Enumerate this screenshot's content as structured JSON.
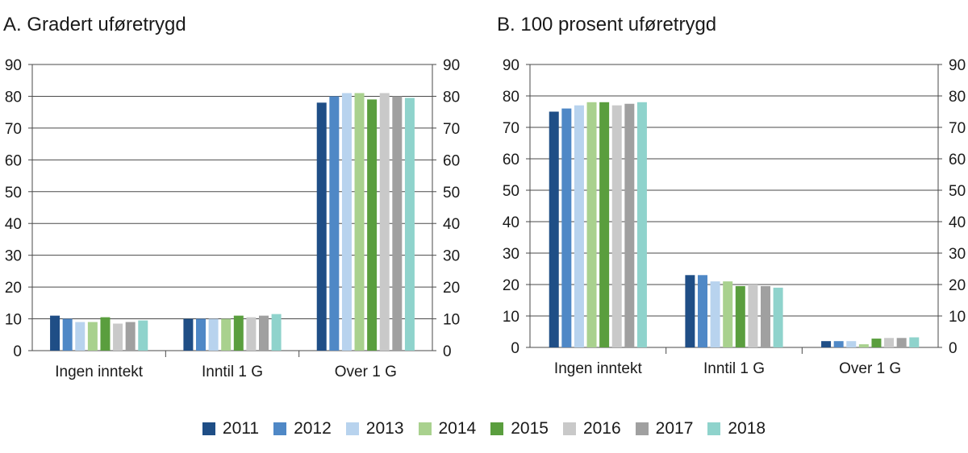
{
  "chart_data": [
    {
      "type": "bar",
      "title": "A. Gradert uføretrygd",
      "categories": [
        "Ingen inntekt",
        "Inntil 1 G",
        "Over 1 G"
      ],
      "ylim": [
        0,
        90
      ],
      "yticks": [
        "0",
        "10",
        "20",
        "30",
        "40",
        "50",
        "60",
        "70",
        "80",
        "90"
      ],
      "series": [
        {
          "name": "2011",
          "values": [
            11,
            10,
            78
          ]
        },
        {
          "name": "2012",
          "values": [
            10,
            10,
            80
          ]
        },
        {
          "name": "2013",
          "values": [
            9,
            10,
            81
          ]
        },
        {
          "name": "2014",
          "values": [
            9,
            10,
            81
          ]
        },
        {
          "name": "2015",
          "values": [
            10.5,
            11,
            79
          ]
        },
        {
          "name": "2016",
          "values": [
            8.5,
            10.5,
            81
          ]
        },
        {
          "name": "2017",
          "values": [
            9,
            11,
            80
          ]
        },
        {
          "name": "2018",
          "values": [
            9.5,
            11.5,
            79.5
          ]
        }
      ]
    },
    {
      "type": "bar",
      "title": "B. 100 prosent uføretrygd",
      "categories": [
        "Ingen inntekt",
        "Inntil 1 G",
        "Over 1 G"
      ],
      "ylim": [
        0,
        90
      ],
      "yticks": [
        "0",
        "10",
        "20",
        "30",
        "40",
        "50",
        "60",
        "70",
        "80",
        "90"
      ],
      "series": [
        {
          "name": "2011",
          "values": [
            75,
            23,
            2
          ]
        },
        {
          "name": "2012",
          "values": [
            76,
            23,
            2
          ]
        },
        {
          "name": "2013",
          "values": [
            77,
            21,
            2
          ]
        },
        {
          "name": "2014",
          "values": [
            78,
            21,
            1
          ]
        },
        {
          "name": "2015",
          "values": [
            78,
            19.5,
            2.8
          ]
        },
        {
          "name": "2016",
          "values": [
            77,
            20,
            3
          ]
        },
        {
          "name": "2017",
          "values": [
            77.5,
            19.5,
            3
          ]
        },
        {
          "name": "2018",
          "values": [
            78,
            19,
            3.2
          ]
        }
      ]
    }
  ],
  "legend": {
    "items": [
      {
        "label": "2011",
        "color": "#1f4e86"
      },
      {
        "label": "2012",
        "color": "#4f88c6"
      },
      {
        "label": "2013",
        "color": "#b8d3ee"
      },
      {
        "label": "2014",
        "color": "#a9d18e"
      },
      {
        "label": "2015",
        "color": "#5a9e3e"
      },
      {
        "label": "2016",
        "color": "#c9c9c9"
      },
      {
        "label": "2017",
        "color": "#a0a0a0"
      },
      {
        "label": "2018",
        "color": "#8fd3cc"
      }
    ]
  }
}
